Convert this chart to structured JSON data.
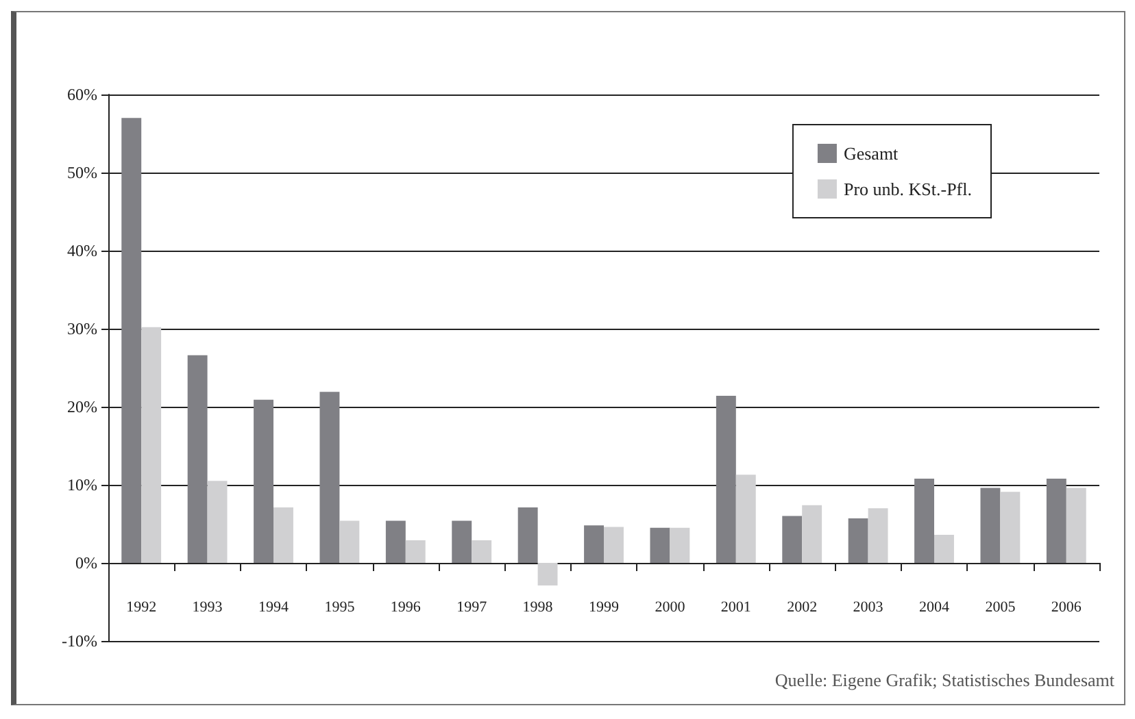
{
  "chart_data": {
    "type": "bar",
    "categories": [
      "1992",
      "1993",
      "1994",
      "1995",
      "1996",
      "1997",
      "1998",
      "1999",
      "2000",
      "2001",
      "2002",
      "2003",
      "2004",
      "2005",
      "2006"
    ],
    "series": [
      {
        "name": "Gesamt",
        "color": "#808085",
        "values": [
          57,
          26.6,
          20.9,
          21.9,
          5.4,
          5.4,
          7.1,
          4.8,
          4.5,
          21.4,
          6.0,
          5.7,
          10.8,
          9.6,
          10.8
        ]
      },
      {
        "name": "Pro unb. KSt.-Pfl.",
        "color": "#d0d0d2",
        "values": [
          30.2,
          10.5,
          7.1,
          5.4,
          2.9,
          2.9,
          -2.9,
          4.6,
          4.5,
          11.3,
          7.4,
          7.0,
          3.6,
          9.1,
          9.6
        ]
      }
    ],
    "ylim": [
      -10,
      60
    ],
    "yticks": [
      {
        "value": -10,
        "label": "-10%"
      },
      {
        "value": 0,
        "label": "0%"
      },
      {
        "value": 10,
        "label": "10%"
      },
      {
        "value": 20,
        "label": "20%"
      },
      {
        "value": 30,
        "label": "30%"
      },
      {
        "value": 40,
        "label": "40%"
      },
      {
        "value": 50,
        "label": "50%"
      },
      {
        "value": 60,
        "label": "60%"
      }
    ],
    "grid": "y",
    "legend": "top right",
    "annotations": [
      "Quelle: Eigene Grafik; Statistisches Bundesamt"
    ]
  }
}
